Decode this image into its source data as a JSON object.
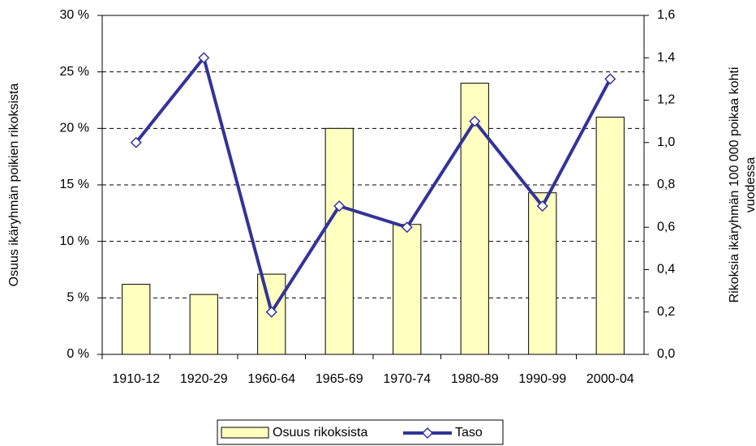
{
  "chart_data": {
    "type": "bar_line",
    "categories": [
      "1910-12",
      "1920-29",
      "1960-64",
      "1965-69",
      "1970-74",
      "1980-89",
      "1990-99",
      "2000-04"
    ],
    "series": [
      {
        "name": "Osuus rikoksista",
        "type": "bar",
        "color": "#ffffc0",
        "values": [
          6.2,
          5.3,
          7.1,
          20,
          11.5,
          24,
          14.3,
          21
        ]
      },
      {
        "name": "Taso",
        "type": "line",
        "axis": "y2",
        "color": "#333399",
        "values": [
          1.0,
          1.4,
          0.2,
          0.7,
          0.6,
          1.1,
          0.7,
          1.3
        ]
      }
    ],
    "ylabel": "Osuus ikäryhmän poikien rikoksista",
    "y2label": [
      "Rikoksia ikäryhmän 100 000 poikaa kohti",
      "vuodessa"
    ],
    "ylim": [
      0,
      30
    ],
    "yticks": [
      {
        "value": 0,
        "label": "0 %"
      },
      {
        "value": 5,
        "label": "5 %"
      },
      {
        "value": 10,
        "label": "10 %"
      },
      {
        "value": 15,
        "label": "15 %"
      },
      {
        "value": 20,
        "label": "20 %"
      },
      {
        "value": 25,
        "label": "25 %"
      },
      {
        "value": 30,
        "label": "30 %"
      }
    ],
    "y2lim": [
      0,
      1.6
    ],
    "y2ticks": [
      {
        "value": 0,
        "label": "0,0"
      },
      {
        "value": 0.2,
        "label": "0,2"
      },
      {
        "value": 0.4,
        "label": "0,4"
      },
      {
        "value": 0.6,
        "label": "0,6"
      },
      {
        "value": 0.8,
        "label": "0,8"
      },
      {
        "value": 1.0,
        "label": "1,0"
      },
      {
        "value": 1.2,
        "label": "1,2"
      },
      {
        "value": 1.4,
        "label": "1,4"
      },
      {
        "value": 1.6,
        "label": "1,6"
      }
    ],
    "grid": true,
    "legend": "bottom"
  }
}
